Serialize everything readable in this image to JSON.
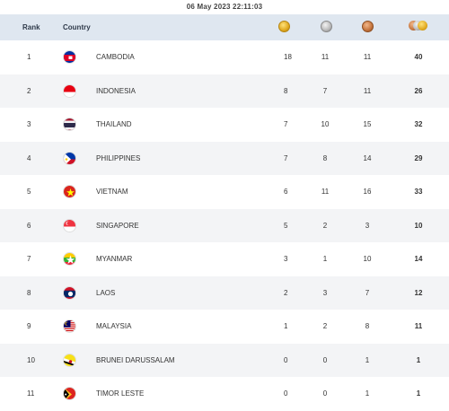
{
  "datetime": "06 May 2023  22:11:03",
  "header": {
    "rank": "Rank",
    "country": "Country"
  },
  "medals": {
    "gold_icon": "gold-medal-icon",
    "silver_icon": "silver-medal-icon",
    "bronze_icon": "bronze-medal-icon",
    "total_icon": "total-medals-icon"
  },
  "rows": [
    {
      "rank": "1",
      "country": "CAMBODIA",
      "gold": "18",
      "silver": "11",
      "bronze": "11",
      "total": "40"
    },
    {
      "rank": "2",
      "country": "INDONESIA",
      "gold": "8",
      "silver": "7",
      "bronze": "11",
      "total": "26"
    },
    {
      "rank": "3",
      "country": "THAILAND",
      "gold": "7",
      "silver": "10",
      "bronze": "15",
      "total": "32"
    },
    {
      "rank": "4",
      "country": "PHILIPPINES",
      "gold": "7",
      "silver": "8",
      "bronze": "14",
      "total": "29"
    },
    {
      "rank": "5",
      "country": "VIETNAM",
      "gold": "6",
      "silver": "11",
      "bronze": "16",
      "total": "33"
    },
    {
      "rank": "6",
      "country": "SINGAPORE",
      "gold": "5",
      "silver": "2",
      "bronze": "3",
      "total": "10"
    },
    {
      "rank": "7",
      "country": "MYANMAR",
      "gold": "3",
      "silver": "1",
      "bronze": "10",
      "total": "14"
    },
    {
      "rank": "8",
      "country": "LAOS",
      "gold": "2",
      "silver": "3",
      "bronze": "7",
      "total": "12"
    },
    {
      "rank": "9",
      "country": "MALAYSIA",
      "gold": "1",
      "silver": "2",
      "bronze": "8",
      "total": "11"
    },
    {
      "rank": "10",
      "country": "BRUNEI DARUSSALAM",
      "gold": "0",
      "silver": "0",
      "bronze": "1",
      "total": "1"
    },
    {
      "rank": "11",
      "country": "TIMOR LESTE",
      "gold": "0",
      "silver": "0",
      "bronze": "1",
      "total": "1"
    }
  ]
}
